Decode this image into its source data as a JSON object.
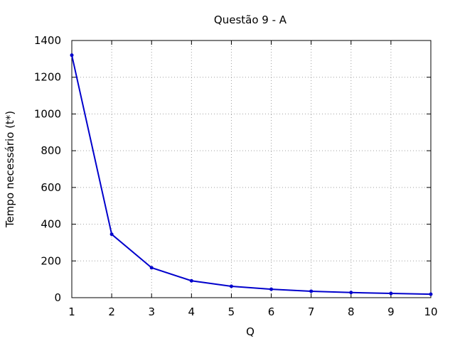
{
  "chart_data": {
    "type": "line",
    "title": "Questão 9 - A",
    "xlabel": "Q",
    "ylabel": "Tempo necessário (t*)",
    "xlim": [
      1,
      10
    ],
    "ylim": [
      0,
      1400
    ],
    "xticks": [
      "1",
      "2",
      "3",
      "4",
      "5",
      "6",
      "7",
      "8",
      "9",
      "10"
    ],
    "yticks": [
      "0",
      "200",
      "400",
      "600",
      "800",
      "1000",
      "1200",
      "1400"
    ],
    "grid": true,
    "color": "#0000cc",
    "series": [
      {
        "x": [
          1,
          2,
          3,
          4,
          5,
          6,
          7,
          8,
          9,
          10
        ],
        "y": [
          1320,
          345,
          163,
          92,
          62,
          46,
          35,
          28,
          23,
          19
        ]
      }
    ]
  }
}
